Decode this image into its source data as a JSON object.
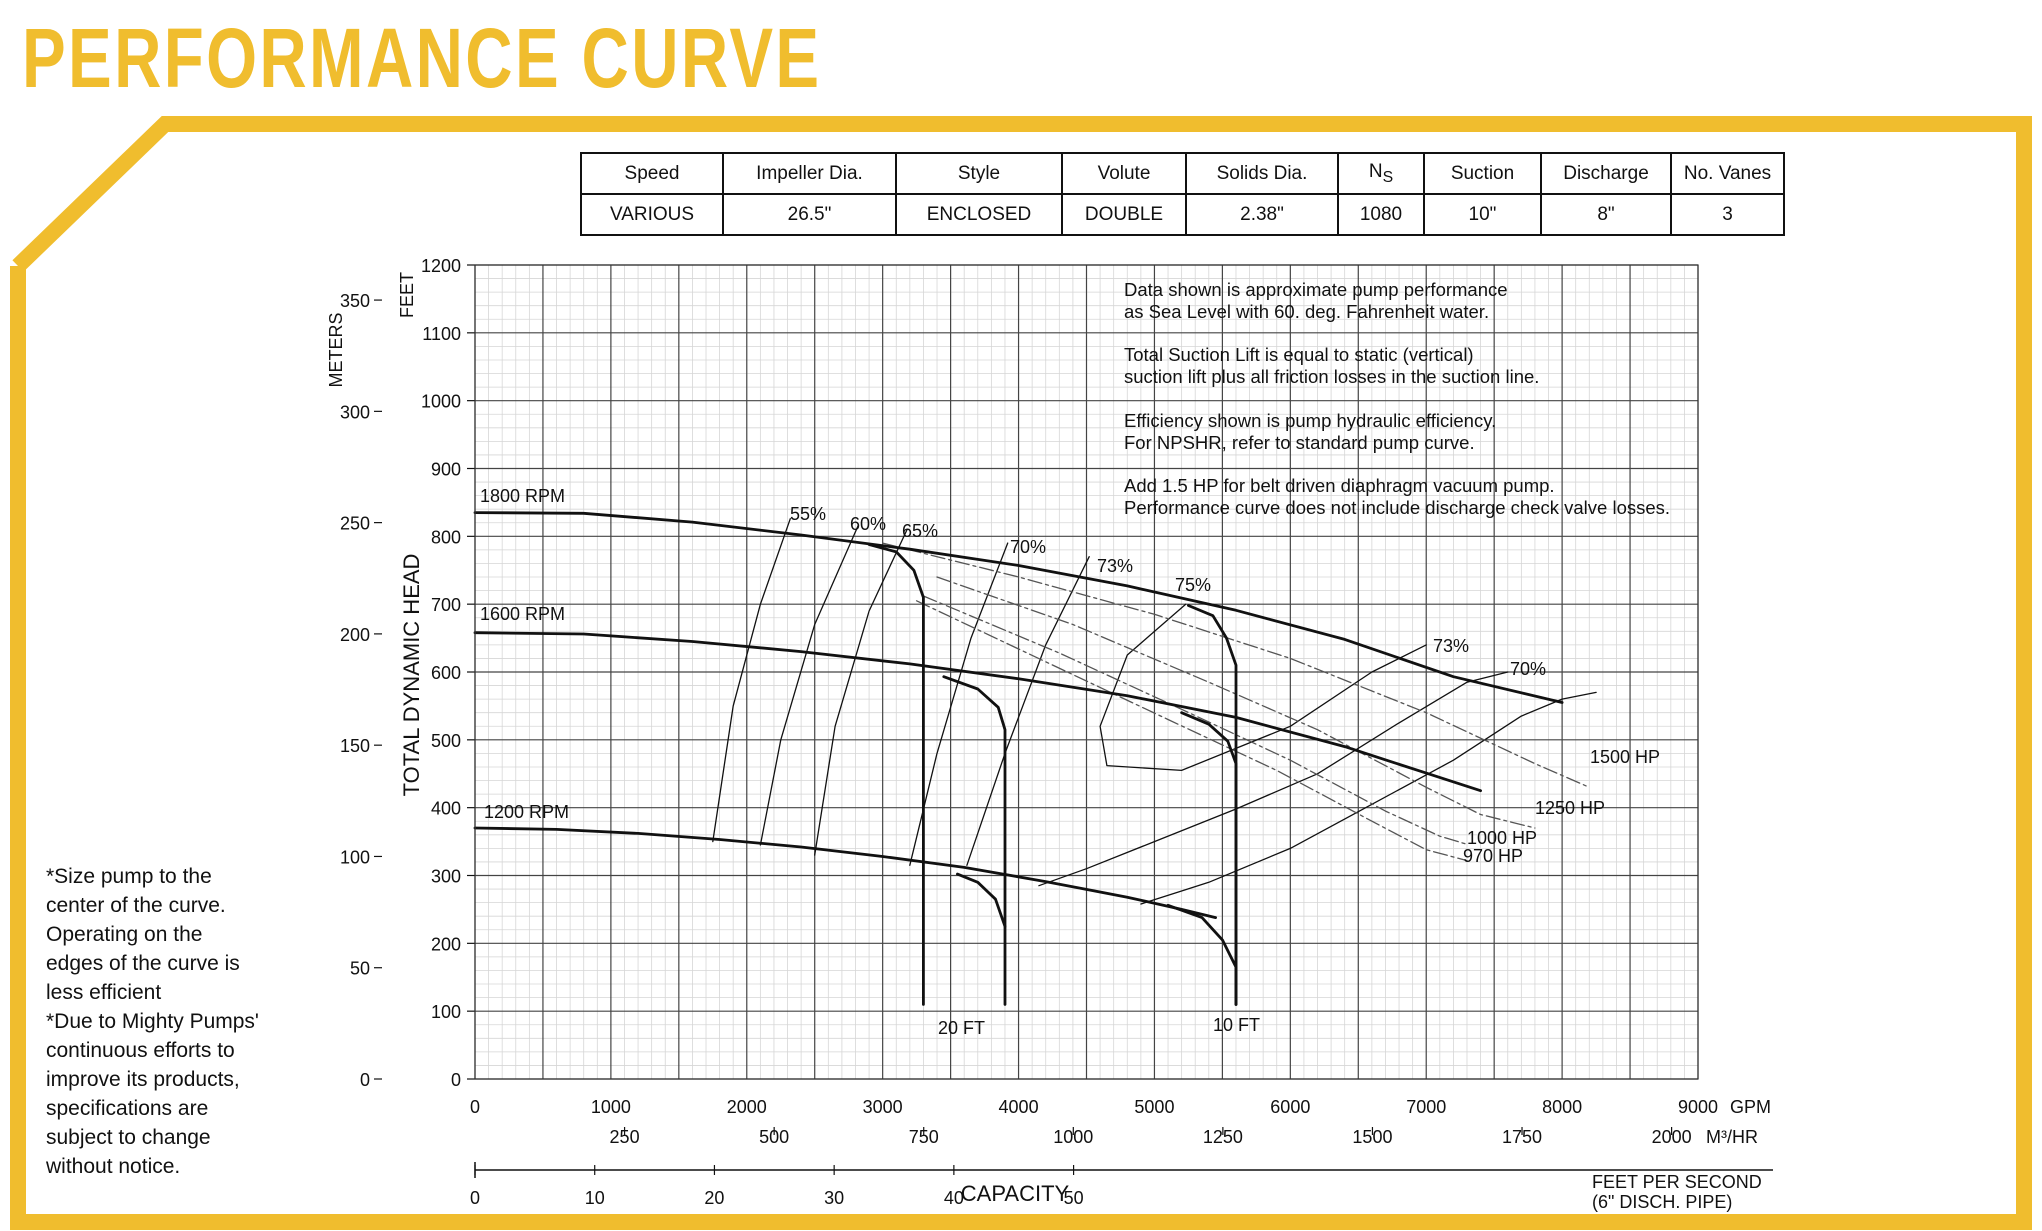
{
  "title": "PERFORMANCE CURVE",
  "specs_table": {
    "headers": [
      "Speed",
      "Impeller Dia.",
      "Style",
      "Volute",
      "Solids Dia.",
      "N",
      "Suction",
      "Discharge",
      "No. Vanes"
    ],
    "ns_subscript": "S",
    "values": [
      "VARIOUS",
      "26.5\"",
      "ENCLOSED",
      "DOUBLE",
      "2.38\"",
      "1080",
      "10\"",
      "8\"",
      "3"
    ]
  },
  "side_note": [
    "*Size pump to the",
    "center of the curve.",
    "Operating on the",
    "edges of the curve is",
    "less efficient",
    "*Due to Mighty Pumps'",
    "continuous efforts to",
    "improve its products,",
    "specifications are",
    "subject to change",
    "without notice."
  ],
  "chart_data": {
    "type": "line",
    "xlim": [
      0,
      9000
    ],
    "ylim": [
      0,
      1200
    ],
    "grid": true,
    "x_ticks": [
      0,
      1000,
      2000,
      3000,
      4000,
      5000,
      6000,
      7000,
      8000,
      9000
    ],
    "y_ticks": [
      0,
      100,
      200,
      300,
      400,
      500,
      600,
      700,
      800,
      900,
      1000,
      1100,
      1200
    ],
    "xlabel": "GPM",
    "ylabel": "TOTAL DYNAMIC HEAD",
    "ylabel_units": "FEET",
    "alt_y_axis": {
      "label": "METERS",
      "ticks": [
        "0",
        "50",
        "100",
        "150",
        "200",
        "250",
        "300",
        "350"
      ],
      "values": [
        0,
        50,
        100,
        150,
        200,
        250,
        300,
        350
      ]
    },
    "m3hr_axis": {
      "unit": "M³/HR",
      "ticks": [
        "250",
        "500",
        "750",
        "1000",
        "1250",
        "1500",
        "1750",
        "2000"
      ],
      "values": [
        250,
        500,
        750,
        1000,
        1250,
        1500,
        1750,
        2000
      ]
    },
    "velocity_axis": {
      "label": "CAPACITY",
      "unit_line1": "FEET PER SECOND",
      "unit_line2": "(6\" DISCH. PIPE)",
      "ticks": [
        "0",
        "10",
        "20",
        "30",
        "40",
        "50"
      ],
      "values": [
        0,
        10,
        20,
        30,
        40,
        50
      ]
    },
    "annotations": [
      "Data shown is approximate pump performance",
      "as Sea Level with 60. deg. Fahrenheit water.",
      "Total Suction Lift is equal to static (vertical)",
      "suction lift plus all friction losses in the suction line.",
      "Efficiency shown is pump hydraulic efficiency.",
      "For NPSHR, refer to standard pump curve.",
      "Add 1.5 HP for belt driven diaphragm vacuum pump.",
      "Performance curve does not include discharge check valve losses."
    ],
    "series": [
      {
        "name": "1800 RPM",
        "x": [
          0,
          800,
          1600,
          2400,
          3200,
          4000,
          4800,
          5600,
          6400,
          7200,
          8000
        ],
        "y": [
          835,
          834,
          821,
          802,
          781,
          757,
          727,
          691,
          648,
          593,
          555
        ]
      },
      {
        "name": "1600 RPM",
        "x": [
          0,
          800,
          1600,
          2400,
          3200,
          4000,
          4800,
          5600,
          6400,
          7000,
          7400
        ],
        "y": [
          658,
          656,
          645,
          630,
          612,
          590,
          565,
          533,
          490,
          451,
          425
        ]
      },
      {
        "name": "1200 RPM",
        "x": [
          0,
          600,
          1200,
          1800,
          2400,
          3000,
          3600,
          4200,
          4800,
          5200,
          5450
        ],
        "y": [
          370,
          368,
          362,
          353,
          342,
          328,
          312,
          291,
          268,
          250,
          238
        ]
      }
    ],
    "suction_lift_limits": [
      {
        "name": "20 FT",
        "x": [
          2900,
          3100,
          3230,
          3300,
          3300
        ],
        "y": [
          788,
          777,
          750,
          710,
          110
        ]
      },
      {
        "name": "20 FT",
        "x": [
          3450,
          3700,
          3850,
          3900,
          3900
        ],
        "y": [
          593,
          575,
          548,
          515,
          110
        ]
      },
      {
        "name": "20 FT",
        "x": [
          3550,
          3700,
          3830,
          3900
        ],
        "y": [
          302,
          290,
          265,
          225
        ]
      },
      {
        "name": "10 FT",
        "x": [
          5250,
          5430,
          5530,
          5600,
          5600
        ],
        "y": [
          698,
          683,
          650,
          610,
          110
        ]
      },
      {
        "name": "10 FT",
        "x": [
          5200,
          5400,
          5540,
          5600,
          5600
        ],
        "y": [
          540,
          523,
          498,
          465,
          110
        ]
      },
      {
        "name": "10 FT",
        "x": [
          5100,
          5350,
          5500,
          5600,
          5600
        ],
        "y": [
          256,
          238,
          205,
          165,
          110
        ]
      }
    ],
    "efficiency_curves": [
      {
        "name": "55%",
        "x": [
          2320,
          2100,
          1900,
          1750
        ],
        "y": [
          826,
          700,
          550,
          350
        ]
      },
      {
        "name": "60%",
        "x": [
          2820,
          2500,
          2250,
          2100
        ],
        "y": [
          816,
          670,
          500,
          345
        ]
      },
      {
        "name": "65%",
        "x": [
          3180,
          2900,
          2650,
          2500
        ],
        "y": [
          810,
          690,
          520,
          330
        ]
      },
      {
        "name": "70%",
        "x": [
          3920,
          3650,
          3400,
          3200
        ],
        "y": [
          790,
          650,
          480,
          315
        ]
      },
      {
        "name": "73%",
        "x": [
          4520,
          4200,
          3900,
          3620
        ],
        "y": [
          770,
          640,
          480,
          315
        ]
      },
      {
        "name": "75%",
        "x": [
          5230,
          4800,
          4600,
          4650,
          5200,
          6000,
          6600,
          7000
        ],
        "y": [
          700,
          625,
          520,
          462,
          455,
          520,
          600,
          640
        ]
      },
      {
        "name": "73%",
        "x": [
          4150,
          4500,
          5000,
          5600,
          6200,
          6800,
          7300,
          7600
        ],
        "y": [
          285,
          310,
          350,
          398,
          450,
          525,
          585,
          600
        ]
      },
      {
        "name": "70%",
        "x": [
          4900,
          5400,
          6000,
          6600,
          7200,
          7700,
          8000,
          8250
        ],
        "y": [
          258,
          290,
          340,
          405,
          470,
          535,
          560,
          570
        ]
      }
    ],
    "power_curves": [
      {
        "name": "1500 HP",
        "x": [
          3000,
          4000,
          5000,
          6000,
          7000,
          7800,
          8200
        ],
        "y": [
          790,
          740,
          685,
          620,
          540,
          465,
          430
        ]
      },
      {
        "name": "1250 HP",
        "x": [
          3400,
          4400,
          5400,
          6200,
          7000,
          7400,
          7800
        ],
        "y": [
          740,
          670,
          585,
          515,
          430,
          390,
          370
        ]
      },
      {
        "name": "1000 HP",
        "x": [
          3300,
          4300,
          5200,
          6000,
          6700,
          7100,
          7300
        ],
        "y": [
          712,
          628,
          545,
          470,
          395,
          358,
          346
        ]
      },
      {
        "name": "970 HP",
        "x": [
          3250,
          4200,
          5100,
          5900,
          6600,
          7000,
          7300
        ],
        "y": [
          705,
          615,
          530,
          455,
          380,
          338,
          322
        ]
      }
    ]
  }
}
